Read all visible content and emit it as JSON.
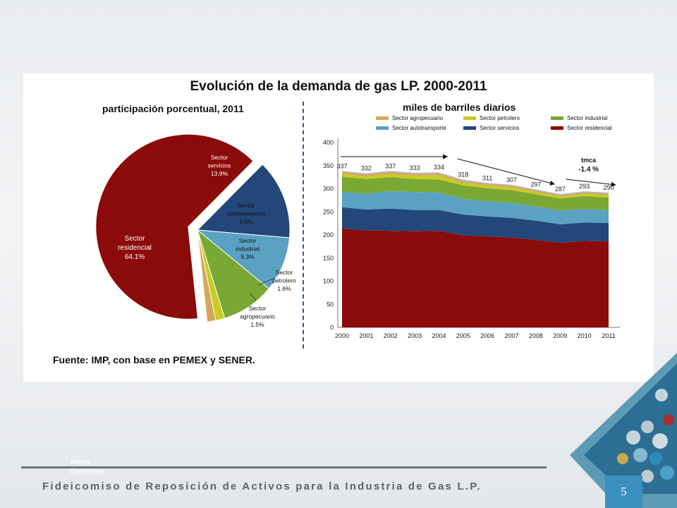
{
  "slide": {
    "footer_text": "Fideicomiso de Reposición de Activos para la Industria de Gas L.P.",
    "page_number": "5",
    "ghost_text": "Mesa Directiva"
  },
  "figure": {
    "title": "Evolución de la demanda de gas LP. 2000-2011",
    "pie_subtitle": "participación porcentual, 2011",
    "area_subtitle": "miles de barriles diarios",
    "source": "Fuente: IMP, con base en PEMEX y SENER."
  },
  "colors": {
    "residencial": "#8b0a0a",
    "servicios": "#24477a",
    "autotransporte": "#5ba2c2",
    "industrial": "#79a834",
    "petrolero": "#c9cc22",
    "agropecuario": "#d4a85a"
  },
  "chart_data": [
    {
      "type": "pie",
      "title": "participación porcentual, 2011",
      "slices": [
        {
          "label": "Sector residencial",
          "value": 64.1,
          "display": "64.1%",
          "line1": "Sector",
          "line2": "residencial",
          "color": "#8b0a0a",
          "exploded": true
        },
        {
          "label": "Sector servicios",
          "value": 13.9,
          "display": "13.9%",
          "line1": "Sector",
          "line2": "servicios",
          "color": "#24477a"
        },
        {
          "label": "Sector autotransporte",
          "value": 9.6,
          "display": "9.6%",
          "line1": "Sector",
          "line2": "autotransporte",
          "color": "#5ba2c2"
        },
        {
          "label": "Sector industrial",
          "value": 9.3,
          "display": "9.3%",
          "line1": "Sector",
          "line2": "industrial",
          "color": "#79a834"
        },
        {
          "label": "Sector petrolero",
          "value": 1.6,
          "display": "1.6%",
          "line1": "Sector",
          "line2": "petrolero",
          "color": "#c9cc22"
        },
        {
          "label": "Sector agropecuario",
          "value": 1.5,
          "display": "1.5%",
          "line1": "Sector",
          "line2": "agropecuario",
          "color": "#d4a85a"
        }
      ]
    },
    {
      "type": "area",
      "title": "miles de barriles diarios",
      "x": [
        "2000",
        "2001",
        "2002",
        "2003",
        "2004",
        "2005",
        "2006",
        "2007",
        "2008",
        "2009",
        "2010",
        "2011"
      ],
      "ylim": [
        0,
        400
      ],
      "yticks": [
        0,
        50,
        100,
        150,
        200,
        250,
        300,
        350,
        400
      ],
      "legend_position": "top",
      "series": [
        {
          "name": "Sector residencial",
          "color": "#8b0a0a",
          "values": [
            214,
            210,
            209,
            208,
            209,
            199,
            197,
            194,
            189,
            183,
            187,
            186
          ]
        },
        {
          "name": "Sector servicios",
          "color": "#24477a",
          "values": [
            46,
            45,
            48,
            46,
            45,
            45,
            43,
            43,
            42,
            40,
            40,
            40
          ]
        },
        {
          "name": "Sector autotransporte",
          "color": "#5ba2c2",
          "values": [
            33,
            34,
            38,
            39,
            38,
            34,
            33,
            32,
            31,
            30,
            29,
            28
          ]
        },
        {
          "name": "Sector industrial",
          "color": "#79a834",
          "values": [
            33,
            32,
            30,
            28,
            28,
            29,
            28,
            28,
            26,
            26,
            28,
            27
          ]
        },
        {
          "name": "Sector petrolero",
          "color": "#c9cc22",
          "values": [
            6,
            6,
            7,
            7,
            9,
            6,
            6,
            6,
            5,
            4,
            5,
            5
          ]
        },
        {
          "name": "Sector agropecuario",
          "color": "#d4a85a",
          "values": [
            5,
            5,
            5,
            5,
            5,
            5,
            4,
            4,
            4,
            4,
            4,
            4
          ]
        }
      ],
      "totals": [
        337,
        332,
        337,
        333,
        334,
        318,
        311,
        307,
        297,
        287,
        293,
        290
      ],
      "annotation": {
        "label": "tmca",
        "value": "-1.4 %"
      }
    }
  ]
}
